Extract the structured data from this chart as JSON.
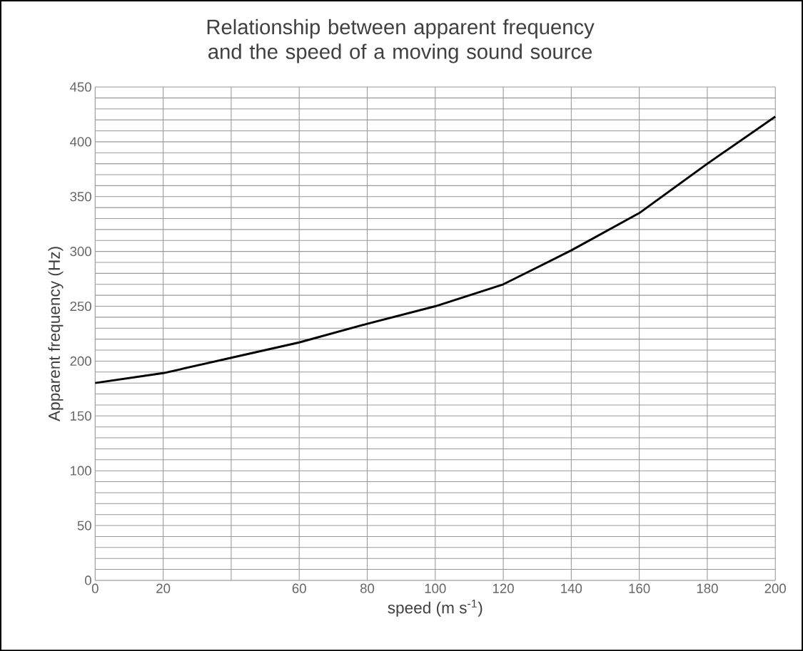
{
  "chart_data": {
    "type": "line",
    "title": "Relationship between apparent frequency and the speed of a moving sound source",
    "xlabel": "speed (m s$^{-1}$)",
    "ylabel": "Apparent frequency (Hz)",
    "x": [
      0,
      20,
      40,
      60,
      80,
      100,
      120,
      140,
      160,
      180,
      200
    ],
    "series": [
      {
        "color": "#000000",
        "values": [
          180,
          189,
          203,
          217,
          234,
          250,
          270,
          301,
          335,
          380,
          423
        ]
      }
    ],
    "xlim": [
      0,
      200
    ],
    "ylim": [
      0,
      450
    ],
    "xticks": [
      0,
      20,
      {
        "value": 40,
        "label": null
      },
      60,
      80,
      100,
      120,
      140,
      160,
      180,
      200
    ],
    "yticks": [
      0,
      50,
      100,
      150,
      200,
      250,
      300,
      350,
      400,
      450
    ],
    "grid": true,
    "marker": "none",
    "line_style": "solid"
  }
}
